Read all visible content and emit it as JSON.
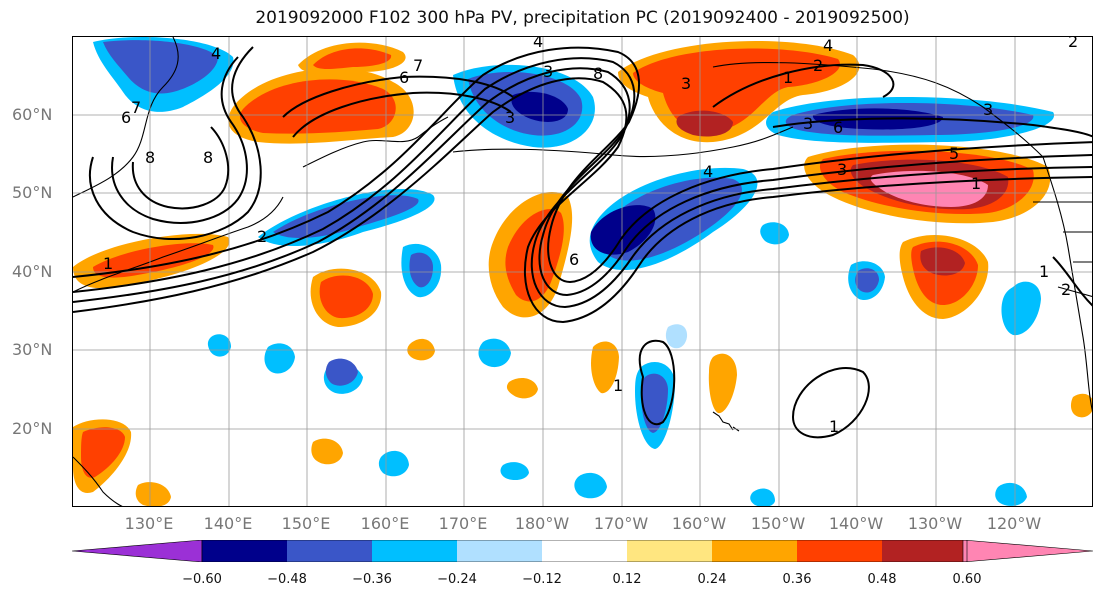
{
  "title": "2019092000 F102 300 hPa PV, precipitation PC (2019092400 - 2019092500)",
  "map": {
    "lat_labels": [
      "60°N",
      "50°N",
      "40°N",
      "30°N",
      "20°N"
    ],
    "lon_labels": [
      "130°E",
      "140°E",
      "150°E",
      "160°E",
      "170°E",
      "180°W",
      "170°W",
      "160°W",
      "150°W",
      "140°W",
      "130°W",
      "120°W"
    ],
    "contour_labels": [
      "4",
      "6",
      "7",
      "8",
      "8",
      "7",
      "6",
      "4",
      "3",
      "3",
      "8",
      "1",
      "2",
      "4",
      "3",
      "3",
      "6",
      "3",
      "2",
      "2",
      "1",
      "4",
      "5",
      "3",
      "1",
      "1",
      "2",
      "1",
      "6",
      "1",
      "1",
      "1",
      "2",
      "2"
    ]
  },
  "colorbar": {
    "tick_labels": [
      "−0.60",
      "−0.48",
      "−0.36",
      "−0.24",
      "−0.12",
      "0.12",
      "0.24",
      "0.36",
      "0.48",
      "0.60"
    ],
    "colors": [
      "#9b30d6",
      "#00008b",
      "#3a56c8",
      "#00bfff",
      "#b0e0ff",
      "#ffffff",
      "#ffe680",
      "#ffa500",
      "#ff4000",
      "#b22222",
      "#ff85b3"
    ]
  }
}
